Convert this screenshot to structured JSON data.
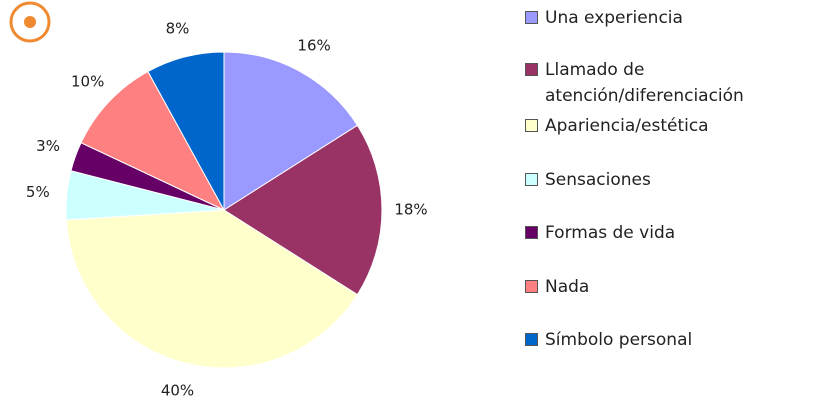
{
  "chart_data": {
    "type": "pie",
    "categories": [
      "Una experiencia",
      "Llamado de atención/diferenciación",
      "Apariencia/estética",
      "Sensaciones",
      "Formas de vida",
      "Nada",
      "Símbolo personal"
    ],
    "values": [
      16,
      18,
      40,
      5,
      3,
      10,
      8
    ],
    "value_labels": [
      "16%",
      "18%",
      "40%",
      "5%",
      "3%",
      "10%",
      "8%"
    ],
    "colors": [
      "#9999ff",
      "#993366",
      "#ffffcc",
      "#ccffff",
      "#660066",
      "#ff8080",
      "#0066cc"
    ],
    "legend": "right"
  }
}
